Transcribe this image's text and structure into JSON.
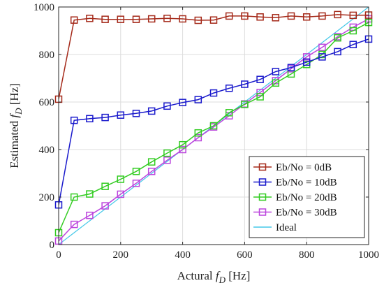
{
  "chart_data": {
    "type": "line",
    "xlabel": {
      "prefix": "Actural ",
      "var": "f",
      "sub": "D",
      "suffix": " [Hz]"
    },
    "ylabel": {
      "prefix": "Estimated ",
      "var": "f",
      "sub": "D",
      "suffix": " [Hz]"
    },
    "xlim": [
      0,
      1000
    ],
    "ylim": [
      0,
      1000
    ],
    "xticks": [
      0,
      200,
      400,
      600,
      800,
      1000
    ],
    "yticks": [
      0,
      200,
      400,
      600,
      800,
      1000
    ],
    "grid": true,
    "legend_position": "bottom-right",
    "x": [
      0,
      50,
      100,
      150,
      200,
      250,
      300,
      350,
      400,
      450,
      500,
      550,
      600,
      650,
      700,
      750,
      800,
      850,
      900,
      950,
      1000
    ],
    "series": [
      {
        "name": "Eb/No = 0dB",
        "color": "#a52a1a",
        "marker": "square",
        "values": [
          612,
          945,
          952,
          948,
          948,
          948,
          950,
          952,
          950,
          944,
          945,
          962,
          962,
          958,
          955,
          962,
          958,
          962,
          968,
          965,
          966
        ]
      },
      {
        "name": "Eb/No = 10dB",
        "color": "#1a1acc",
        "marker": "square",
        "values": [
          167,
          523,
          530,
          535,
          545,
          552,
          562,
          583,
          598,
          610,
          638,
          658,
          675,
          695,
          728,
          745,
          768,
          790,
          812,
          842,
          865
        ]
      },
      {
        "name": "Eb/No = 20dB",
        "color": "#33cc22",
        "marker": "square",
        "values": [
          50,
          200,
          213,
          245,
          275,
          308,
          348,
          385,
          420,
          470,
          500,
          555,
          590,
          622,
          680,
          718,
          758,
          800,
          870,
          900,
          935
        ]
      },
      {
        "name": "Eb/No = 30dB",
        "color": "#bb44dd",
        "marker": "square",
        "values": [
          15,
          85,
          123,
          163,
          212,
          258,
          308,
          355,
          400,
          450,
          495,
          542,
          592,
          640,
          690,
          740,
          790,
          830,
          875,
          915,
          950
        ]
      },
      {
        "name": "Ideal",
        "color": "#44c8e8",
        "marker": "none",
        "values": [
          0,
          50,
          100,
          150,
          200,
          250,
          300,
          350,
          400,
          450,
          500,
          550,
          600,
          650,
          700,
          750,
          800,
          850,
          900,
          950,
          1000
        ]
      }
    ]
  }
}
